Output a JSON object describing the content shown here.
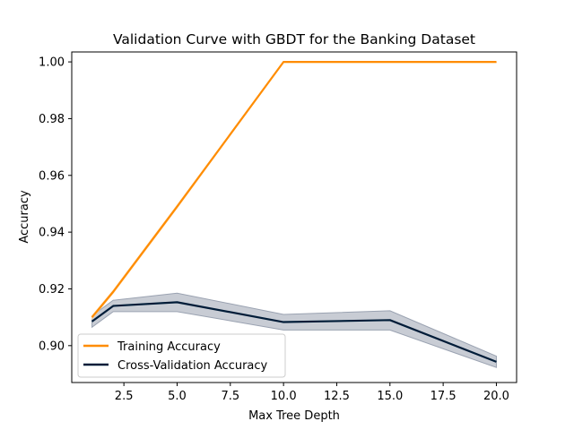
{
  "chart_data": {
    "type": "line",
    "title": "Validation Curve with GBDT for the Banking Dataset",
    "xlabel": "Max Tree Depth",
    "ylabel": "Accuracy",
    "xlim": [
      0.05,
      20.95
    ],
    "ylim": [
      0.887,
      1.0035
    ],
    "xticks": [
      2.5,
      5.0,
      7.5,
      10.0,
      12.5,
      15.0,
      17.5,
      20.0
    ],
    "xtick_labels": [
      "2.5",
      "5.0",
      "7.5",
      "10.0",
      "12.5",
      "15.0",
      "17.5",
      "20.0"
    ],
    "yticks": [
      0.9,
      0.92,
      0.94,
      0.96,
      0.98,
      1.0
    ],
    "ytick_labels": [
      "0.90",
      "0.92",
      "0.94",
      "0.96",
      "0.98",
      "1.00"
    ],
    "x": [
      1,
      2,
      5,
      10,
      15,
      20
    ],
    "grid": false,
    "legend_position": "lower-left",
    "series": [
      {
        "name": "Training Accuracy",
        "color": "#ff8c00",
        "values": [
          0.91,
          0.919,
          0.949,
          1.0,
          1.0,
          1.0
        ],
        "band_lower": [
          0.9095,
          0.9185,
          0.9485,
          0.9998,
          0.9998,
          0.9998
        ],
        "band_upper": [
          0.9105,
          0.9195,
          0.9495,
          1.0,
          1.0,
          1.0
        ],
        "band_color": "#ffd9a8"
      },
      {
        "name": "Cross-Validation Accuracy",
        "color": "#001c38",
        "values": [
          0.9085,
          0.914,
          0.9153,
          0.9083,
          0.909,
          0.8943
        ],
        "band_lower": [
          0.9065,
          0.912,
          0.912,
          0.9055,
          0.9055,
          0.8923
        ],
        "band_upper": [
          0.9105,
          0.916,
          0.9185,
          0.911,
          0.9123,
          0.8963
        ],
        "band_color": "#9aa2b1"
      }
    ]
  }
}
